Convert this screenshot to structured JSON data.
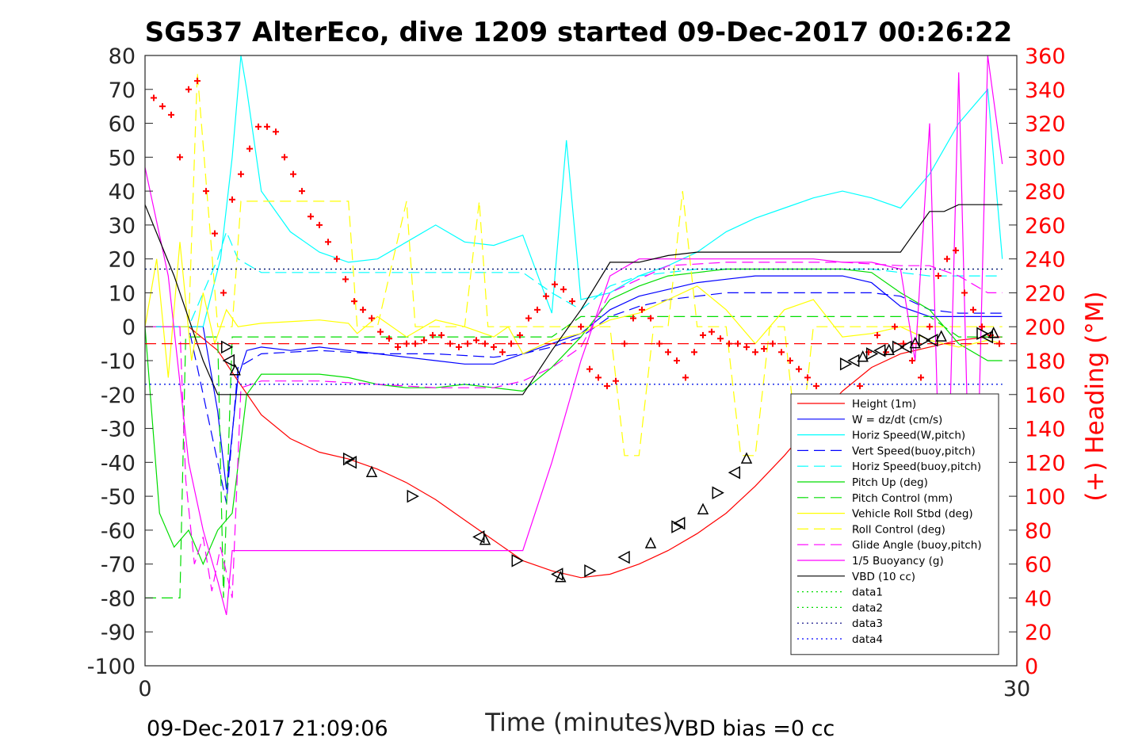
{
  "chart_data": {
    "type": "line",
    "title": "SG537 AlterEco, dive 1209 started 09-Dec-2017 00:26:22",
    "xlabel": "Time (minutes)",
    "ylabel": "",
    "y2label": "(+) Heading (°M)",
    "xlim": [
      0,
      30
    ],
    "ylim": [
      -100,
      80
    ],
    "y2lim": [
      0,
      360
    ],
    "xticks": [
      "0",
      "30"
    ],
    "yticks": [
      "80",
      "70",
      "60",
      "50",
      "40",
      "30",
      "20",
      "10",
      "0",
      "-10",
      "-20",
      "-30",
      "-40",
      "-50",
      "-60",
      "-70",
      "-80",
      "-90",
      "-100"
    ],
    "y2ticks": [
      "360",
      "340",
      "320",
      "300",
      "280",
      "260",
      "240",
      "220",
      "200",
      "180",
      "160",
      "140",
      "120",
      "100",
      "80",
      "60",
      "40",
      "20",
      "0"
    ],
    "footer_left": "09-Dec-2017 21:09:06",
    "footer_right": "VBD bias =0 cc",
    "grid": false,
    "legend_position": "bottom-right",
    "series": [
      {
        "name": "Height (1m)",
        "color": "#ff0000",
        "style": "solid",
        "x": [
          0,
          1.5,
          2.5,
          3.2,
          4,
          5,
          6,
          7,
          8,
          9,
          10,
          11,
          12,
          13,
          14,
          15,
          16,
          17,
          18,
          19,
          20,
          21,
          22,
          23,
          24,
          25,
          26,
          27,
          28,
          29,
          29.5
        ],
        "y": [
          0,
          0,
          -7,
          -16,
          -26,
          -33,
          -37,
          -39,
          -42,
          -46,
          -51,
          -57,
          -63,
          -69,
          -72,
          -74,
          -73,
          -70,
          -66,
          -61,
          -55,
          -47,
          -38,
          -28,
          -19,
          -12,
          -8,
          -6,
          -4,
          -3,
          -3
        ]
      },
      {
        "name": "W = dz/dt (cm/s)",
        "color": "#0000ff",
        "style": "solid",
        "x": [
          0,
          1,
          2,
          2.5,
          2.8,
          3.2,
          3.5,
          4,
          5,
          6,
          7,
          8,
          9,
          10,
          11,
          12,
          13,
          14,
          15,
          16,
          17,
          18,
          19,
          20,
          21,
          22,
          23,
          24,
          25,
          26,
          27,
          28,
          29,
          29.5
        ],
        "y": [
          0,
          0,
          0,
          -25,
          -48,
          -15,
          -7,
          -6,
          -7,
          -6,
          -7,
          -8,
          -9,
          -10,
          -11,
          -11,
          -8,
          -5,
          -2,
          5,
          9,
          11,
          13,
          14,
          15,
          15,
          15,
          15,
          13,
          6,
          3,
          3,
          3,
          3
        ]
      },
      {
        "name": "Horiz Speed(W,pitch)",
        "color": "#00ffff",
        "style": "solid",
        "x": [
          0,
          2,
          2.6,
          3,
          3.3,
          3.5,
          4,
          5,
          6,
          7,
          8,
          9,
          10,
          11,
          12,
          13,
          14,
          14.5,
          15,
          16,
          17,
          18,
          19,
          20,
          21,
          22,
          23,
          24,
          25,
          26,
          27,
          28,
          29,
          29.5
        ],
        "y": [
          0,
          0,
          20,
          50,
          80,
          70,
          40,
          28,
          22,
          19,
          20,
          25,
          30,
          25,
          24,
          27,
          4,
          55,
          8,
          10,
          15,
          18,
          22,
          28,
          32,
          35,
          38,
          40,
          38,
          35,
          45,
          60,
          70,
          20
        ]
      },
      {
        "name": "Vert Speed(buoy,pitch)",
        "color": "#0000ff",
        "style": "dashed",
        "x": [
          0,
          1.5,
          2.5,
          2.8,
          3.2,
          4,
          6,
          8,
          10,
          12,
          13,
          14,
          15,
          16,
          17,
          18,
          19,
          20,
          21,
          22,
          23,
          24,
          25,
          26,
          27,
          28,
          29,
          29.5
        ],
        "y": [
          0,
          0,
          -40,
          -52,
          -12,
          -8,
          -7,
          -8,
          -8,
          -9,
          -8,
          -6,
          -3,
          3,
          6,
          8,
          9,
          10,
          10,
          10,
          10,
          10,
          10,
          9,
          5,
          4,
          4,
          4
        ]
      },
      {
        "name": "Horiz Speed(buoy,pitch)",
        "color": "#00ffff",
        "style": "dashed",
        "x": [
          0,
          1.5,
          2.5,
          2.8,
          3.2,
          4,
          6,
          8,
          10,
          12,
          13,
          14,
          15,
          16,
          17,
          18,
          19,
          20,
          21,
          22,
          23,
          24,
          25,
          26,
          27,
          28,
          29,
          29.5
        ],
        "y": [
          0,
          0,
          20,
          28,
          20,
          16,
          16,
          16,
          16,
          16,
          16,
          10,
          5,
          12,
          15,
          16,
          17,
          17,
          17,
          17,
          17,
          17,
          17,
          16,
          15,
          15,
          15,
          15
        ]
      },
      {
        "name": "Pitch Up (deg)",
        "color": "#00dd00",
        "style": "solid",
        "x": [
          0,
          0.5,
          1,
          1.5,
          2,
          2.5,
          3,
          3.5,
          4,
          5,
          6,
          7,
          8,
          9,
          10,
          11,
          12,
          13,
          14,
          15,
          16,
          17,
          18,
          19,
          20,
          21,
          22,
          23,
          24,
          25,
          26,
          27,
          28,
          29,
          29.5
        ],
        "y": [
          0,
          -55,
          -65,
          -60,
          -70,
          -60,
          -55,
          -20,
          -14,
          -14,
          -14,
          -15,
          -17,
          -18,
          -18,
          -17,
          -18,
          -19,
          -12,
          -3,
          8,
          12,
          15,
          16,
          17,
          17,
          17,
          17,
          17,
          16,
          10,
          5,
          -5,
          -10,
          -10
        ]
      },
      {
        "name": "Pitch Control (mm)",
        "color": "#00dd00",
        "style": "dashed",
        "x": [
          0,
          1.2,
          1.4,
          2.5,
          2.7,
          3,
          5,
          7,
          9,
          11,
          13,
          14,
          15,
          16,
          18,
          20,
          22,
          24,
          26,
          27,
          28,
          29,
          29.5
        ],
        "y": [
          -80,
          -80,
          -3,
          -3,
          -80,
          -3,
          -3,
          -3,
          -3,
          -3,
          -3,
          -3,
          3,
          3,
          3,
          3,
          3,
          3,
          3,
          3,
          -3,
          -3,
          -3
        ]
      },
      {
        "name": "Vehicle Roll Stbd (deg)",
        "color": "#ffff00",
        "style": "solid",
        "x": [
          0,
          0.4,
          0.8,
          1.2,
          1.6,
          2,
          2.4,
          2.8,
          3.2,
          4,
          6,
          7,
          7.3,
          8,
          9,
          10,
          11,
          12,
          12.5,
          13,
          14,
          15,
          16,
          17,
          18,
          19,
          20,
          21,
          22,
          23,
          24,
          25,
          26,
          27,
          28,
          29,
          29.5
        ],
        "y": [
          0,
          20,
          -15,
          25,
          -10,
          10,
          -5,
          5,
          0,
          1,
          2,
          1,
          -2,
          3,
          -3,
          2,
          0,
          -3,
          0,
          -8,
          -4,
          -2,
          2,
          4,
          8,
          12,
          5,
          -5,
          5,
          8,
          -3,
          -2,
          0,
          -4,
          -6,
          -4,
          -5
        ]
      },
      {
        "name": "Roll Control (deg)",
        "color": "#ffff00",
        "style": "dashed",
        "x": [
          0,
          1.5,
          1.8,
          2.5,
          3,
          3.3,
          7,
          7.3,
          8,
          9,
          9.3,
          11,
          11.5,
          11.8,
          12.2,
          13,
          15,
          16,
          16.5,
          17,
          17.5,
          18,
          18.5,
          19,
          19.5,
          20,
          20.5,
          21,
          21.5,
          22,
          22.5,
          23,
          25,
          27,
          28,
          29,
          29.5
        ],
        "y": [
          0,
          0,
          75,
          0,
          0,
          37,
          37,
          0,
          0,
          37,
          0,
          0,
          37,
          0,
          0,
          0,
          0,
          0,
          -38,
          -38,
          0,
          0,
          40,
          0,
          0,
          0,
          -38,
          -38,
          0,
          0,
          -40,
          0,
          0,
          0,
          0,
          0,
          0
        ]
      },
      {
        "name": "Glide Angle (buoy,pitch)",
        "color": "#ff00ff",
        "style": "dashed",
        "x": [
          0,
          1.2,
          1.4,
          1.7,
          2,
          2.3,
          2.6,
          3,
          3.3,
          4,
          6,
          8,
          10,
          12,
          13,
          14,
          15,
          16,
          18,
          20,
          22,
          24,
          26,
          27,
          28,
          29,
          29.5
        ],
        "y": [
          0,
          0,
          -45,
          -70,
          -62,
          -78,
          -65,
          -80,
          -18,
          -16,
          -16,
          -17,
          -18,
          -18,
          -16,
          -12,
          -6,
          10,
          18,
          19,
          19,
          19,
          18,
          18,
          15,
          10,
          10
        ]
      },
      {
        "name": "1/5 Buoyancy (g)",
        "color": "#ff00ff",
        "style": "solid",
        "x": [
          0,
          0.8,
          1.5,
          2,
          2.5,
          2.8,
          3,
          3.3,
          4,
          6,
          8,
          10,
          12,
          13,
          14,
          15,
          16,
          17,
          18,
          19,
          20,
          21,
          22,
          23,
          24,
          25,
          26,
          26.5,
          27,
          27.5,
          28,
          28.5,
          29,
          29.5
        ],
        "y": [
          47,
          15,
          -40,
          -60,
          -75,
          -85,
          -66,
          -66,
          -66,
          -66,
          -66,
          -66,
          -66,
          -66,
          -40,
          -10,
          15,
          20,
          20,
          20,
          20,
          20,
          20,
          20,
          19,
          19,
          17,
          -10,
          60,
          -95,
          75,
          -95,
          80,
          48
        ]
      },
      {
        "name": "VBD (10 cc)",
        "color": "#000000",
        "style": "solid",
        "x": [
          0,
          1,
          2,
          2.5,
          3,
          13,
          14,
          15,
          16,
          17,
          18,
          19,
          20,
          21,
          22,
          25,
          26,
          26.5,
          27,
          27.5,
          28,
          29,
          29.5
        ],
        "y": [
          36,
          15,
          -10,
          -20,
          -20,
          -20,
          -7,
          5,
          19,
          19,
          21,
          22,
          22,
          22,
          22,
          22,
          22,
          28,
          34,
          34,
          36,
          36,
          36
        ]
      },
      {
        "name": "data1",
        "color": "#00dd00",
        "style": "dotted",
        "x": [
          0,
          29.5
        ],
        "y": [
          17,
          17
        ]
      },
      {
        "name": "data2",
        "color": "#00dd00",
        "style": "dotted",
        "x": [
          0,
          29.5
        ],
        "y": [
          -17,
          -17
        ]
      },
      {
        "name": "data3",
        "color": "#000080",
        "style": "dotted",
        "x": [
          0,
          29.5
        ],
        "y": [
          17,
          17
        ]
      },
      {
        "name": "data4",
        "color": "#0000ff",
        "style": "dotted",
        "x": [
          0,
          29.5
        ],
        "y": [
          -17,
          -17
        ]
      }
    ],
    "reference_line": {
      "color": "#ff0000",
      "style": "dashed",
      "y": -5
    },
    "heading_markers": {
      "color": "#ff0000",
      "marker": "+",
      "axis": "right",
      "x": [
        0.3,
        0.6,
        0.9,
        1.2,
        1.5,
        1.8,
        2.1,
        2.4,
        2.7,
        3,
        3.3,
        3.6,
        3.9,
        4.2,
        4.5,
        4.8,
        5.1,
        5.4,
        5.7,
        6,
        6.3,
        6.6,
        6.9,
        7.2,
        7.5,
        7.8,
        8.1,
        8.4,
        8.7,
        9,
        9.3,
        9.6,
        9.9,
        10.2,
        10.5,
        10.8,
        11.1,
        11.4,
        11.7,
        12,
        12.3,
        12.6,
        12.9,
        13.2,
        13.5,
        13.8,
        14.1,
        14.4,
        14.7,
        15,
        15.3,
        15.6,
        15.9,
        16.2,
        16.5,
        16.8,
        17.1,
        17.4,
        17.7,
        18,
        18.3,
        18.6,
        18.9,
        19.2,
        19.5,
        19.8,
        20.1,
        20.4,
        20.7,
        21,
        21.3,
        21.6,
        21.9,
        22.2,
        22.5,
        22.8,
        23.1,
        23.4,
        23.7,
        24,
        24.3,
        24.6,
        24.9,
        25.2,
        25.5,
        25.8,
        26.1,
        26.4,
        26.7,
        27,
        27.3,
        27.6,
        27.9,
        28.2,
        28.5,
        28.8,
        29.1,
        29.4
      ],
      "y": [
        335,
        330,
        325,
        300,
        340,
        345,
        280,
        255,
        220,
        275,
        290,
        305,
        318,
        318,
        315,
        300,
        290,
        280,
        265,
        260,
        250,
        240,
        228,
        215,
        210,
        205,
        197,
        193,
        188,
        190,
        190,
        192,
        195,
        195,
        190,
        188,
        190,
        192,
        190,
        188,
        185,
        190,
        195,
        205,
        210,
        218,
        225,
        222,
        215,
        200,
        175,
        170,
        165,
        168,
        190,
        205,
        210,
        205,
        190,
        185,
        180,
        170,
        185,
        195,
        197,
        193,
        190,
        190,
        188,
        185,
        187,
        190,
        185,
        180,
        175,
        170,
        165,
        155,
        150,
        145,
        150,
        165,
        185,
        195,
        185,
        200,
        190,
        180,
        170,
        200,
        230,
        240,
        245,
        220,
        210,
        200,
        195,
        190
      ]
    },
    "height_markers": {
      "color": "#000000",
      "marker": "triangle",
      "x": [
        2.8,
        2.9,
        3.1,
        7,
        7.1,
        7.8,
        9.2,
        11.5,
        11.7,
        12.8,
        14.2,
        14.3,
        15.3,
        16.5,
        17.4,
        18.3,
        18.4,
        19.2,
        19.7,
        20.3,
        20.7,
        24.1,
        24.4,
        24.7,
        25,
        25.3,
        25.6,
        25.9,
        26.2,
        26.5,
        26.8,
        27.1,
        27.4,
        28.8,
        29,
        29.2
      ],
      "y": [
        -6,
        -10,
        -13,
        -39,
        -40,
        -43,
        -50,
        -62,
        -63,
        -69,
        -73,
        -74,
        -72,
        -68,
        -64,
        -59,
        -58,
        -54,
        -49,
        -43,
        -39,
        -11,
        -10,
        -9,
        -8,
        -7,
        -7,
        -6,
        -6,
        -5,
        -4,
        -4,
        -3,
        -2,
        -3,
        -2
      ]
    }
  }
}
